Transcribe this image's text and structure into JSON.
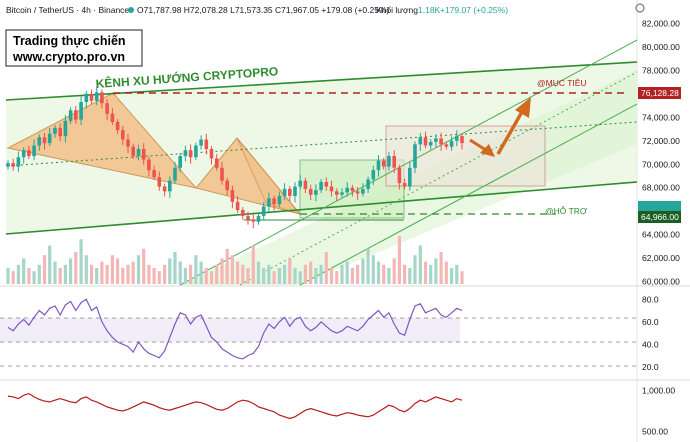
{
  "header": {
    "symbol": "Bitcoin / TetherUS · 4h · Binance",
    "ohlc": "O71,787.98 H72,078.28 L71,573.35 C71,967.05 +179.08 (+0.25%)",
    "volume_label": "Khối lượng",
    "volume": "1.18K",
    "volume_change": "+179.07 (+0.25%)"
  },
  "watermark": {
    "line1": "Trading thực chiến",
    "line2": "www.crypto.pro.vn"
  },
  "annotations": {
    "channel_title": "KÊNH XU HƯỚNG CRYPTOPRO",
    "target_label": "@MỤC TIÊU",
    "support_label": "@HỖ TRỢ"
  },
  "price_axis": {
    "ticks": [
      "82,000.00",
      "80,000.00",
      "78,000.00",
      "76,000.00",
      "74,000.00",
      "72,000.00",
      "70,000.00",
      "68,000.00",
      "66,000.00",
      "64,000.00",
      "62,000.00",
      "60,000.00"
    ],
    "target_badge": "76,128.28",
    "support_badge": "64,966.00"
  },
  "rsi_axis": {
    "ticks": [
      "80.0",
      "60.0",
      "40.0",
      "20.0"
    ]
  },
  "osc_axis": {
    "ticks": [
      "1,000.00",
      "500.00"
    ]
  },
  "colors": {
    "up": "#26a69a",
    "down": "#ef5350",
    "channel": "#2e8b2e",
    "orange": "#e8a04a",
    "target_line": "#b22222",
    "rsi_line": "#7e57c2",
    "osc_line": "#b71c1c"
  },
  "chart_data": {
    "type": "candlestick",
    "timeframe": "4h",
    "ylim": [
      59800,
      82800
    ],
    "series": {
      "close": [
        70100,
        69800,
        70600,
        71200,
        70700,
        71600,
        72300,
        71800,
        72600,
        73100,
        72400,
        73700,
        74600,
        73800,
        75300,
        76000,
        75400,
        76128,
        75200,
        74300,
        73600,
        72900,
        72100,
        71500,
        70700,
        71300,
        70400,
        69500,
        68900,
        68100,
        67700,
        68600,
        69700,
        70700,
        71200,
        70600,
        71600,
        72100,
        71300,
        70500,
        69700,
        68600,
        67800,
        66800,
        66100,
        65600,
        65300,
        65100,
        65600,
        66400,
        67100,
        66600,
        67300,
        67900,
        67300,
        68100,
        68600,
        67900,
        67400,
        67800,
        68500,
        68100,
        67700,
        67400,
        67600,
        68000,
        67700,
        67500,
        67900,
        68700,
        69500,
        70300,
        69800,
        70700,
        69700,
        68400,
        68100,
        69700,
        71700,
        72300,
        71600,
        71900,
        72200,
        71700,
        71500,
        72000,
        72400,
        71800
      ]
    },
    "volume": [
      5,
      4,
      6,
      8,
      5,
      4,
      6,
      9,
      12,
      7,
      5,
      6,
      8,
      10,
      14,
      9,
      6,
      5,
      7,
      6,
      9,
      8,
      5,
      6,
      7,
      9,
      11,
      6,
      5,
      4,
      6,
      8,
      10,
      7,
      5,
      6,
      9,
      7,
      5,
      4,
      6,
      8,
      11,
      9,
      7,
      6,
      5,
      12,
      7,
      5,
      6,
      4,
      5,
      6,
      8,
      5,
      4,
      6,
      7,
      5,
      6,
      10,
      5,
      4,
      6,
      7,
      5,
      6,
      8,
      11,
      9,
      7,
      6,
      5,
      8,
      15,
      6,
      5,
      9,
      12,
      7,
      6,
      8,
      10,
      7,
      5,
      6,
      4
    ],
    "rsi": [
      55,
      52,
      58,
      62,
      57,
      64,
      70,
      66,
      72,
      74,
      66,
      75,
      78,
      70,
      77,
      80,
      70,
      73,
      60,
      52,
      46,
      42,
      40,
      38,
      33,
      42,
      36,
      32,
      30,
      28,
      34,
      46,
      58,
      68,
      66,
      58,
      64,
      66,
      56,
      46,
      42,
      36,
      33,
      30,
      28,
      27,
      30,
      32,
      38,
      50,
      58,
      54,
      60,
      64,
      56,
      62,
      64,
      56,
      52,
      55,
      60,
      56,
      52,
      50,
      52,
      56,
      54,
      52,
      56,
      62,
      66,
      70,
      64,
      68,
      58,
      50,
      48,
      62,
      74,
      76,
      68,
      70,
      72,
      66,
      64,
      68,
      72,
      70
    ],
    "oscillator": [
      930,
      920,
      900,
      940,
      960,
      920,
      890,
      870,
      860,
      880,
      900,
      880,
      860,
      850,
      900,
      920,
      880,
      860,
      830,
      800,
      780,
      760,
      750,
      770,
      800,
      830,
      860,
      840,
      820,
      790,
      770,
      760,
      780,
      800,
      820,
      840,
      860,
      850,
      830,
      800,
      770,
      760,
      780,
      820,
      860,
      880,
      870,
      840,
      800,
      780,
      760,
      740,
      700,
      680,
      660,
      680,
      720,
      760,
      780,
      760,
      740,
      720,
      700,
      690,
      710,
      730,
      720,
      700,
      690,
      680,
      700,
      740,
      780,
      820,
      800,
      760,
      740,
      780,
      840,
      880,
      860,
      890,
      920,
      900,
      880,
      860,
      900,
      880
    ],
    "rsi_ylim": [
      10,
      90
    ],
    "osc_ticks": [
      1000,
      500
    ],
    "levels": {
      "target": 76128.28,
      "support": 64966.0
    }
  }
}
